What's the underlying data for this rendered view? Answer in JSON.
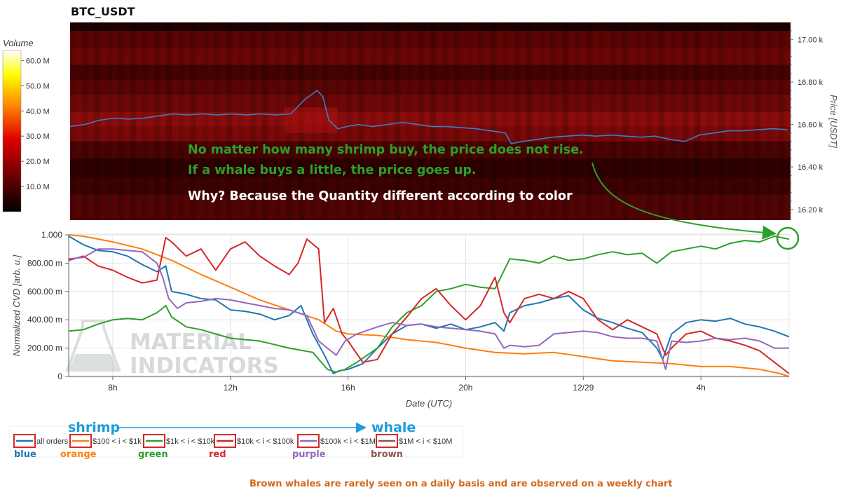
{
  "title": "BTC_USDT",
  "colorbar": {
    "label": "Volume",
    "ticks": [
      "60.0 M",
      "50.0 M",
      "40.0 M",
      "30.0 M",
      "20.0 M",
      "10.0 M"
    ],
    "tick_values": [
      60,
      50,
      40,
      30,
      20,
      10
    ],
    "max": 64
  },
  "annotations": {
    "line1": "No matter how many shrimp buy, the price does not rise.",
    "line2": "If a whale buys a little, the price goes up.",
    "line3": "Why? Because the Quantity different according to color",
    "footer": "Brown whales are rarely seen on a daily basis and are observed on a weekly chart"
  },
  "watermark": {
    "line1": "MATERIAL",
    "line2": "INDICATORS"
  },
  "legend": {
    "shrimp": "shrimp",
    "whale": "whale",
    "items": [
      {
        "label": "all orders",
        "color": "#1f77b4",
        "color_name": "blue"
      },
      {
        "label": "$100 < i < $1k",
        "color": "#ff7f0e",
        "color_name": "orange"
      },
      {
        "label": "$1k < i < $10k",
        "color": "#2ca02c",
        "color_name": "green"
      },
      {
        "label": "$10k < i < $100k",
        "color": "#d62728",
        "color_name": "red"
      },
      {
        "label": "$100k < i < $1M",
        "color": "#9467bd",
        "color_name": "purple"
      },
      {
        "label": "$1M < i < $10M",
        "color": "#8c564b",
        "color_name": "brown"
      }
    ]
  },
  "chart_data": [
    {
      "type": "heatmap",
      "title": "BTC_USDT",
      "xlabel": "",
      "ylabel": "Price [USDT]",
      "ylim": [
        16150,
        17080
      ],
      "yticks": [
        "16.20 k",
        "16.40 k",
        "16.60 k",
        "16.80 k",
        "17.00 k"
      ],
      "ytick_values": [
        16200,
        16400,
        16600,
        16800,
        17000
      ],
      "xlim": [
        6.5,
        31
      ],
      "price_line": {
        "color": "#3a7fc4",
        "x": [
          6.5,
          7.0,
          7.5,
          8.0,
          8.5,
          9.0,
          9.5,
          10.0,
          10.5,
          11.0,
          11.5,
          12.0,
          12.5,
          13.0,
          13.5,
          14.0,
          14.5,
          14.7,
          14.9,
          15.1,
          15.3,
          15.6,
          15.9,
          16.3,
          16.8,
          17.3,
          17.8,
          18.3,
          18.8,
          19.3,
          19.8,
          20.3,
          20.8,
          21.3,
          21.5,
          21.9,
          22.4,
          22.9,
          23.4,
          23.9,
          24.4,
          24.9,
          25.4,
          25.9,
          26.4,
          26.9,
          27.4,
          27.9,
          28.4,
          28.9,
          29.4,
          29.9,
          30.4,
          30.9
        ],
        "y": [
          16590,
          16600,
          16620,
          16630,
          16625,
          16630,
          16640,
          16650,
          16645,
          16650,
          16645,
          16650,
          16645,
          16650,
          16645,
          16650,
          16720,
          16740,
          16760,
          16730,
          16620,
          16580,
          16590,
          16600,
          16590,
          16600,
          16610,
          16600,
          16590,
          16590,
          16585,
          16580,
          16570,
          16560,
          16510,
          16520,
          16530,
          16540,
          16545,
          16550,
          16545,
          16550,
          16545,
          16540,
          16545,
          16530,
          16520,
          16550,
          16560,
          16570,
          16570,
          16575,
          16580,
          16575
        ]
      }
    },
    {
      "type": "line",
      "xlabel": "Date (UTC)",
      "ylabel": "Normalized CVD [arb. u.]",
      "xlim": [
        6.5,
        31
      ],
      "ylim": [
        0,
        1
      ],
      "xticks": [
        "8h",
        "12h",
        "16h",
        "20h",
        "12/29",
        "4h"
      ],
      "xtick_values": [
        8,
        12,
        16,
        20,
        24,
        28
      ],
      "yticks": [
        "0",
        "200.00 m",
        "400.00 m",
        "600.00 m",
        "800.00 m",
        "1.000"
      ],
      "ytick_values": [
        0,
        0.2,
        0.4,
        0.6,
        0.8,
        1.0
      ],
      "series": [
        {
          "name": "all orders",
          "color": "#1f77b4",
          "x": [
            6.5,
            7.0,
            7.5,
            8.0,
            8.5,
            9.0,
            9.5,
            9.8,
            10.0,
            10.5,
            11.0,
            11.5,
            12.0,
            12.5,
            13.0,
            13.5,
            14.0,
            14.4,
            14.8,
            15.2,
            15.5,
            15.7,
            16.0,
            16.5,
            17.0,
            17.5,
            18.0,
            18.5,
            19.0,
            19.5,
            20.0,
            20.5,
            21.0,
            21.3,
            21.5,
            22.0,
            22.5,
            23.0,
            23.5,
            24.0,
            24.5,
            25.0,
            25.5,
            26.0,
            26.5,
            26.7,
            27.0,
            27.5,
            28.0,
            28.5,
            29.0,
            29.5,
            30.0,
            30.5,
            31.0
          ],
          "y": [
            0.99,
            0.93,
            0.89,
            0.88,
            0.85,
            0.79,
            0.74,
            0.78,
            0.6,
            0.58,
            0.55,
            0.54,
            0.47,
            0.46,
            0.44,
            0.4,
            0.43,
            0.5,
            0.3,
            0.15,
            0.02,
            0.04,
            0.05,
            0.09,
            0.2,
            0.3,
            0.36,
            0.37,
            0.34,
            0.37,
            0.33,
            0.35,
            0.38,
            0.32,
            0.45,
            0.5,
            0.52,
            0.55,
            0.57,
            0.47,
            0.41,
            0.38,
            0.34,
            0.31,
            0.2,
            0.12,
            0.3,
            0.38,
            0.4,
            0.39,
            0.41,
            0.37,
            0.35,
            0.32,
            0.28
          ]
        },
        {
          "name": "$100 < i < $1k",
          "color": "#ff7f0e",
          "x": [
            6.5,
            7.0,
            8.0,
            9.0,
            10.0,
            11.0,
            12.0,
            13.0,
            14.0,
            15.0,
            15.6,
            16.0,
            17.0,
            18.0,
            19.0,
            20.0,
            21.0,
            22.0,
            23.0,
            24.0,
            25.0,
            26.0,
            27.0,
            28.0,
            29.0,
            30.0,
            30.7,
            31.0
          ],
          "y": [
            1.0,
            0.99,
            0.95,
            0.9,
            0.82,
            0.72,
            0.63,
            0.54,
            0.47,
            0.4,
            0.32,
            0.3,
            0.29,
            0.26,
            0.24,
            0.2,
            0.17,
            0.16,
            0.17,
            0.14,
            0.11,
            0.1,
            0.09,
            0.07,
            0.07,
            0.05,
            0.02,
            0.0
          ]
        },
        {
          "name": "$1k < i < $10k",
          "color": "#2ca02c",
          "x": [
            6.5,
            7.0,
            7.5,
            8.0,
            8.5,
            9.0,
            9.5,
            9.8,
            10.0,
            10.5,
            11.0,
            11.5,
            12.0,
            13.0,
            14.0,
            14.8,
            15.3,
            15.6,
            15.9,
            16.3,
            17.0,
            17.5,
            18.0,
            18.5,
            19.0,
            19.5,
            20.0,
            20.5,
            21.0,
            21.5,
            22.0,
            22.5,
            23.0,
            23.5,
            24.0,
            24.5,
            25.0,
            25.5,
            26.0,
            26.5,
            27.0,
            27.5,
            28.0,
            28.5,
            29.0,
            29.5,
            30.0,
            30.5,
            31.0
          ],
          "y": [
            0.32,
            0.33,
            0.37,
            0.4,
            0.41,
            0.4,
            0.45,
            0.5,
            0.42,
            0.35,
            0.33,
            0.3,
            0.27,
            0.25,
            0.2,
            0.17,
            0.05,
            0.03,
            0.05,
            0.1,
            0.2,
            0.35,
            0.45,
            0.5,
            0.6,
            0.62,
            0.65,
            0.63,
            0.62,
            0.83,
            0.82,
            0.8,
            0.85,
            0.82,
            0.83,
            0.86,
            0.88,
            0.86,
            0.87,
            0.8,
            0.88,
            0.9,
            0.92,
            0.9,
            0.94,
            0.96,
            0.95,
            0.99,
            0.97
          ]
        },
        {
          "name": "$10k < i < $100k",
          "color": "#d62728",
          "x": [
            6.5,
            7.0,
            7.5,
            8.0,
            8.5,
            9.0,
            9.5,
            9.8,
            10.0,
            10.5,
            11.0,
            11.5,
            12.0,
            12.5,
            13.0,
            13.5,
            14.0,
            14.3,
            14.6,
            15.0,
            15.2,
            15.5,
            15.8,
            16.0,
            16.5,
            17.0,
            17.5,
            18.0,
            18.5,
            19.0,
            19.5,
            20.0,
            20.5,
            21.0,
            21.3,
            21.5,
            22.0,
            22.5,
            23.0,
            23.5,
            24.0,
            24.5,
            25.0,
            25.5,
            26.0,
            26.5,
            26.8,
            27.0,
            27.5,
            28.0,
            28.5,
            29.0,
            29.5,
            30.0,
            30.5,
            31.0
          ],
          "y": [
            0.82,
            0.85,
            0.78,
            0.75,
            0.7,
            0.66,
            0.68,
            0.98,
            0.95,
            0.85,
            0.9,
            0.75,
            0.9,
            0.95,
            0.85,
            0.78,
            0.72,
            0.8,
            0.97,
            0.9,
            0.38,
            0.48,
            0.3,
            0.25,
            0.1,
            0.12,
            0.3,
            0.42,
            0.55,
            0.62,
            0.5,
            0.4,
            0.5,
            0.7,
            0.45,
            0.38,
            0.55,
            0.58,
            0.55,
            0.6,
            0.55,
            0.4,
            0.33,
            0.4,
            0.35,
            0.3,
            0.15,
            0.2,
            0.3,
            0.32,
            0.27,
            0.25,
            0.22,
            0.18,
            0.1,
            0.02
          ]
        },
        {
          "name": "$100k < i < $1M",
          "color": "#9467bd",
          "x": [
            6.5,
            7.0,
            7.5,
            8.0,
            8.5,
            9.0,
            9.5,
            9.7,
            9.9,
            10.2,
            10.5,
            11.0,
            11.5,
            12.0,
            12.5,
            13.0,
            13.5,
            14.0,
            14.6,
            15.0,
            15.3,
            15.6,
            15.9,
            16.3,
            17.0,
            17.5,
            18.0,
            18.5,
            19.0,
            19.5,
            20.0,
            20.5,
            21.0,
            21.3,
            21.5,
            22.0,
            22.5,
            23.0,
            23.5,
            24.0,
            24.5,
            25.0,
            25.5,
            26.0,
            26.5,
            26.8,
            27.0,
            27.5,
            28.0,
            28.5,
            29.0,
            29.5,
            30.0,
            30.5,
            31.0
          ],
          "y": [
            0.83,
            0.84,
            0.9,
            0.9,
            0.89,
            0.88,
            0.8,
            0.7,
            0.55,
            0.48,
            0.52,
            0.53,
            0.55,
            0.54,
            0.52,
            0.5,
            0.48,
            0.47,
            0.43,
            0.25,
            0.2,
            0.15,
            0.25,
            0.3,
            0.35,
            0.38,
            0.36,
            0.37,
            0.35,
            0.34,
            0.33,
            0.32,
            0.3,
            0.2,
            0.22,
            0.21,
            0.22,
            0.3,
            0.31,
            0.32,
            0.31,
            0.28,
            0.27,
            0.27,
            0.25,
            0.05,
            0.25,
            0.24,
            0.25,
            0.27,
            0.26,
            0.27,
            0.25,
            0.2,
            0.2
          ]
        }
      ]
    }
  ]
}
